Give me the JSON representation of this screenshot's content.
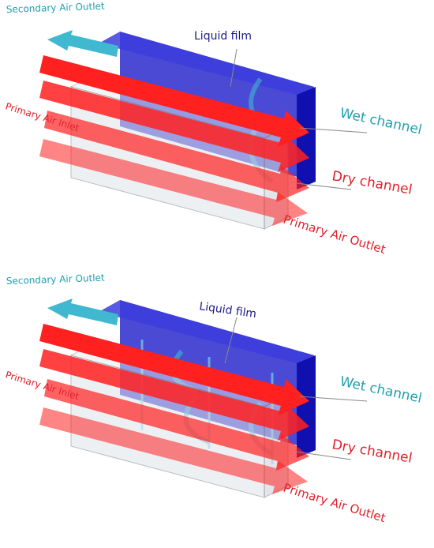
{
  "colors": {
    "wet_label": "#1f9fb0",
    "air_arrow": "#ff1f1f",
    "secondary_arrow": "#3fb8d0",
    "liquid_film_label": "#1a1a8c",
    "wet_channel_fill": "#2a2acc"
  },
  "icons": {
    "primary_arrow": "arrow-right-icon",
    "secondary_arrow": "arrow-left-icon"
  },
  "panels": [
    {
      "variant": "single-divider",
      "labels": {
        "secondary_air_outlet": "Secondary Air Outlet",
        "liquid_film": "Liquid film",
        "wet_channel": "Wet channel",
        "dry_channel": "Dry channel",
        "primary_air_inlet": "Primary Air Inlet",
        "primary_air_outlet": "Primary Air Outlet"
      }
    },
    {
      "variant": "multi-divider",
      "labels": {
        "secondary_air_outlet": "Secondary Air Outlet",
        "liquid_film": "Liquid film",
        "wet_channel": "Wet channel",
        "dry_channel": "Dry channel",
        "primary_air_inlet": "Primary Air Inlet",
        "primary_air_outlet": "Primary Air Outlet"
      }
    }
  ]
}
